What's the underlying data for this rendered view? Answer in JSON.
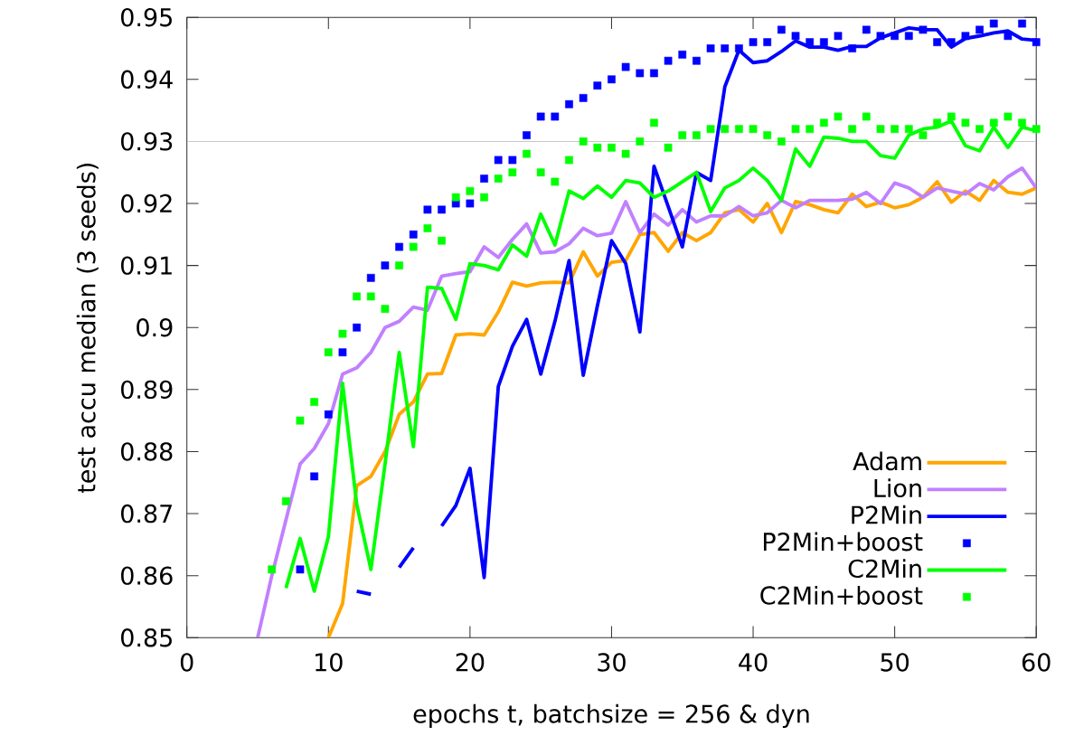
{
  "chart_data": {
    "type": "line",
    "xlabel": "epochs t, batchsize = 256 & dyn",
    "ylabel": "test accu median (3 seeds)",
    "x": [
      5,
      6,
      7,
      8,
      9,
      10,
      11,
      12,
      13,
      14,
      15,
      16,
      17,
      18,
      19,
      20,
      21,
      22,
      23,
      24,
      25,
      26,
      27,
      28,
      29,
      30,
      31,
      32,
      33,
      34,
      35,
      36,
      37,
      38,
      39,
      40,
      41,
      42,
      43,
      44,
      45,
      46,
      47,
      48,
      49,
      50,
      51,
      52,
      53,
      54,
      55,
      56,
      57,
      58,
      59,
      60
    ],
    "xlim": [
      0,
      60
    ],
    "xticks": [
      0,
      10,
      20,
      30,
      40,
      50,
      60
    ],
    "ylim": [
      0.85,
      0.95
    ],
    "yticks": [
      0.85,
      0.86,
      0.87,
      0.88,
      0.89,
      0.9,
      0.91,
      0.92,
      0.93,
      0.94,
      0.95
    ],
    "legend": "bottom right",
    "line_style": "solid",
    "ref_lines": [
      {
        "axis": "y",
        "value": 0.93,
        "color": "#c8c8c8"
      }
    ],
    "series": [
      {
        "name": "Adam",
        "color": "#ffa500",
        "values": [
          null,
          null,
          null,
          null,
          null,
          0.85,
          0.8555,
          0.8745,
          0.876,
          0.88,
          0.886,
          0.888,
          0.8925,
          0.8926,
          0.8988,
          0.899,
          0.8988,
          0.9025,
          0.9073,
          0.9067,
          0.9072,
          0.9073,
          0.9072,
          0.9122,
          0.9083,
          0.9105,
          0.9108,
          0.915,
          0.9153,
          0.9123,
          0.9153,
          0.914,
          0.9153,
          0.9185,
          0.919,
          0.917,
          0.92,
          0.9153,
          0.9203,
          0.9198,
          0.919,
          0.9185,
          0.9215,
          0.9195,
          0.9202,
          0.9193,
          0.9198,
          0.921,
          0.9235,
          0.9202,
          0.922,
          0.9205,
          0.9237,
          0.9218,
          0.9215,
          0.9225
        ]
      },
      {
        "name": "Lion",
        "color": "#c080ff",
        "values": [
          0.85,
          0.86,
          0.869,
          0.878,
          0.8805,
          0.8845,
          0.8925,
          0.8935,
          0.896,
          0.9,
          0.901,
          0.9033,
          0.9028,
          0.9083,
          0.9087,
          0.909,
          0.913,
          0.9113,
          0.9142,
          0.9167,
          0.912,
          0.9122,
          0.9135,
          0.916,
          0.9148,
          0.9152,
          0.9203,
          0.9153,
          0.9183,
          0.9165,
          0.919,
          0.917,
          0.918,
          0.918,
          0.9195,
          0.918,
          0.9185,
          0.9205,
          0.9193,
          0.9205,
          0.9205,
          0.9205,
          0.9207,
          0.9218,
          0.92,
          0.9233,
          0.9225,
          0.921,
          0.9225,
          0.922,
          0.9215,
          0.9232,
          0.9222,
          0.9243,
          0.9257,
          0.9225
        ]
      },
      {
        "name": "P2Min",
        "color": "#0000ff",
        "values": [
          null,
          null,
          null,
          null,
          null,
          null,
          null,
          0.8575,
          0.857,
          null,
          0.8613,
          0.8645,
          null,
          0.868,
          0.8713,
          0.8773,
          0.8597,
          0.8905,
          0.897,
          0.9013,
          0.8925,
          0.901,
          0.9108,
          0.8923,
          0.9035,
          0.914,
          0.9103,
          0.8993,
          0.926,
          0.9195,
          0.913,
          0.925,
          0.9237,
          0.9388,
          0.9447,
          0.9427,
          0.943,
          0.9445,
          0.9462,
          0.9452,
          0.9452,
          0.9447,
          0.9453,
          0.9453,
          0.9467,
          0.9475,
          0.9483,
          0.948,
          0.948,
          0.9452,
          0.9466,
          0.947,
          0.9475,
          0.9478,
          0.9465,
          0.9463
        ]
      },
      {
        "name": "P2Min+boost",
        "type": "scatter",
        "marker": "square",
        "color": "#0000ff",
        "values": [
          null,
          null,
          null,
          0.861,
          0.876,
          0.886,
          0.896,
          0.9,
          0.908,
          0.91,
          0.913,
          0.915,
          0.919,
          0.919,
          0.92,
          0.92,
          0.924,
          0.927,
          0.927,
          0.931,
          0.934,
          0.934,
          0.936,
          0.937,
          0.939,
          0.94,
          0.942,
          0.941,
          0.941,
          0.943,
          0.944,
          0.943,
          0.945,
          0.945,
          0.945,
          0.946,
          0.946,
          0.948,
          0.947,
          0.946,
          0.946,
          0.947,
          0.945,
          0.948,
          0.947,
          0.947,
          0.947,
          0.948,
          0.946,
          0.946,
          0.947,
          0.948,
          0.949,
          0.947,
          0.949,
          0.946
        ]
      },
      {
        "name": "C2Min",
        "color": "#00ff00",
        "values": [
          null,
          null,
          0.858,
          0.866,
          0.8575,
          0.8663,
          0.891,
          0.8715,
          0.861,
          0.878,
          0.896,
          0.8808,
          0.9065,
          0.9063,
          0.9013,
          0.9103,
          0.91,
          0.9093,
          0.9133,
          0.9115,
          0.9183,
          0.9133,
          0.922,
          0.9208,
          0.9228,
          0.921,
          0.9237,
          0.9233,
          0.921,
          0.922,
          0.9235,
          0.925,
          0.9187,
          0.9225,
          0.9237,
          0.9257,
          0.9237,
          0.9205,
          0.9288,
          0.926,
          0.9307,
          0.9305,
          0.93,
          0.93,
          0.9277,
          0.9273,
          0.931,
          0.932,
          0.9323,
          0.9333,
          0.9293,
          0.9285,
          0.9323,
          0.929,
          0.9323,
          0.9317
        ]
      },
      {
        "name": "C2Min+boost",
        "type": "scatter",
        "marker": "square",
        "color": "#00ff00",
        "values": [
          null,
          0.861,
          0.872,
          0.885,
          0.888,
          0.896,
          0.899,
          0.905,
          0.905,
          0.903,
          0.91,
          0.913,
          0.916,
          0.914,
          0.921,
          0.922,
          0.921,
          0.924,
          0.925,
          0.928,
          0.925,
          0.9235,
          0.927,
          0.93,
          0.929,
          0.929,
          0.928,
          0.93,
          0.933,
          0.929,
          0.931,
          0.931,
          0.932,
          0.932,
          0.932,
          0.932,
          0.931,
          0.93,
          0.932,
          0.932,
          0.933,
          0.934,
          0.932,
          0.934,
          0.932,
          0.932,
          0.932,
          0.931,
          0.933,
          0.934,
          0.933,
          0.932,
          0.933,
          0.934,
          0.933,
          0.932
        ]
      }
    ]
  }
}
